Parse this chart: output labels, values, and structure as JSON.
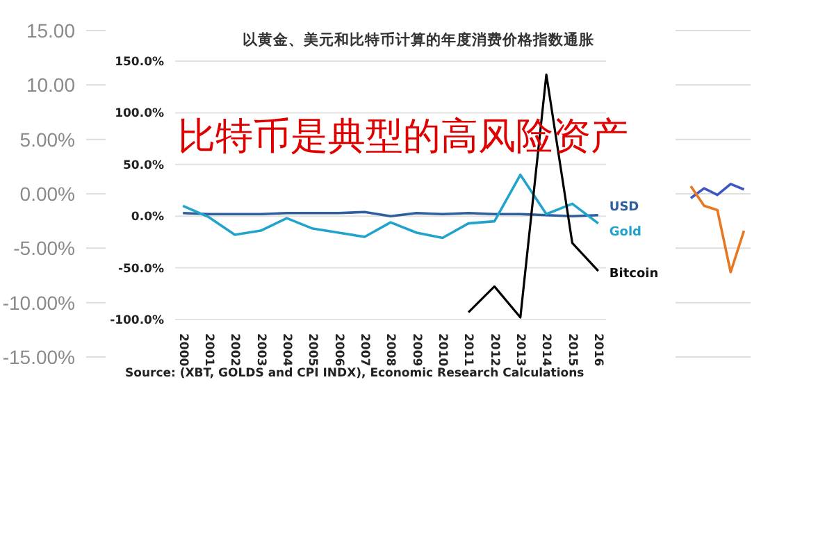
{
  "chart_data": [
    {
      "type": "line",
      "title": "以黄金、美元和比特币计算的年度消费价格指数通胀",
      "annotations": [
        "比特币是典型的高风险资产",
        "Source: (XBT, GOLDS and CPI INDX), Economic Research Calculations"
      ],
      "categories": [
        "2000",
        "2001",
        "2002",
        "2003",
        "2004",
        "2005",
        "2006",
        "2007",
        "2008",
        "2009",
        "2010",
        "2011",
        "2012",
        "2013",
        "2014",
        "2015",
        "2016"
      ],
      "series": [
        {
          "name": "USD",
          "color": "#2e5e9e",
          "values": [
            3,
            2,
            2,
            2,
            3,
            3,
            3,
            4,
            0,
            3,
            2,
            3,
            2,
            2,
            1,
            0,
            1
          ]
        },
        {
          "name": "Gold",
          "color": "#22a3cc",
          "values": [
            10,
            -1,
            -18,
            -14,
            -2,
            -12,
            -16,
            -20,
            -6,
            -16,
            -21,
            -7,
            -5,
            40,
            2,
            12,
            -7
          ]
        },
        {
          "name": "Bitcoin",
          "color": "#000000",
          "values": [
            null,
            null,
            null,
            null,
            null,
            null,
            null,
            null,
            null,
            null,
            null,
            -93,
            -68,
            -98,
            137,
            -26,
            -53
          ]
        }
      ],
      "ylim": [
        -100,
        150
      ],
      "yticks": [
        {
          "value": -100,
          "label": "-100.0%"
        },
        {
          "value": -50,
          "label": "-50.0%"
        },
        {
          "value": 0,
          "label": "0.0%"
        },
        {
          "value": 50,
          "label": "50.0%"
        },
        {
          "value": 100,
          "label": "100.0%"
        },
        {
          "value": 150,
          "label": "150.0%"
        }
      ],
      "grid": "y",
      "legend": false,
      "marker": "none"
    },
    {
      "type": "line",
      "categories": [
        null,
        null,
        null,
        null,
        null,
        null,
        null,
        null,
        null,
        null,
        null,
        null,
        null,
        null,
        null,
        null,
        null,
        null,
        null,
        null,
        null,
        null,
        null,
        null,
        null,
        null,
        null,
        null,
        null,
        null,
        null,
        null,
        null,
        null,
        null,
        null,
        null,
        null,
        null,
        null,
        null,
        null,
        null,
        null,
        null,
        null,
        null,
        null,
        null,
        null
      ],
      "series": [
        {
          "color": "#3f56c0",
          "values": [
            null,
            null,
            null,
            null,
            null,
            null,
            null,
            null,
            null,
            null,
            null,
            null,
            null,
            null,
            null,
            null,
            null,
            null,
            null,
            null,
            null,
            null,
            null,
            null,
            null,
            null,
            null,
            null,
            null,
            null,
            null,
            null,
            null,
            null,
            null,
            null,
            null,
            null,
            null,
            null,
            null,
            null,
            null,
            null,
            null,
            -0.4,
            0.5,
            -0.1,
            0.9,
            0.4
          ]
        },
        {
          "color": "#e87722",
          "values": [
            null,
            null,
            null,
            null,
            null,
            null,
            null,
            null,
            null,
            null,
            null,
            null,
            null,
            null,
            null,
            null,
            null,
            null,
            null,
            null,
            null,
            null,
            null,
            null,
            null,
            null,
            null,
            null,
            null,
            null,
            null,
            null,
            null,
            null,
            null,
            null,
            null,
            null,
            null,
            null,
            null,
            null,
            null,
            null,
            null,
            0.7,
            -1.1,
            -1.5,
            -7.2,
            -3.4
          ]
        }
      ],
      "ylim": [
        -15,
        15
      ],
      "yticks": [
        {
          "value": -15,
          "label": "-15.00%"
        },
        {
          "value": -10,
          "label": "-10.00%"
        },
        {
          "value": -5,
          "label": "-5.00%"
        },
        {
          "value": 0,
          "label": "0.00%"
        },
        {
          "value": 5,
          "label": "5.00%"
        },
        {
          "value": 10,
          "label": "10.00"
        },
        {
          "value": 15,
          "label": "15.00"
        }
      ],
      "grid": "y",
      "tick_labels": "y",
      "legend": false,
      "marker": "none"
    }
  ]
}
